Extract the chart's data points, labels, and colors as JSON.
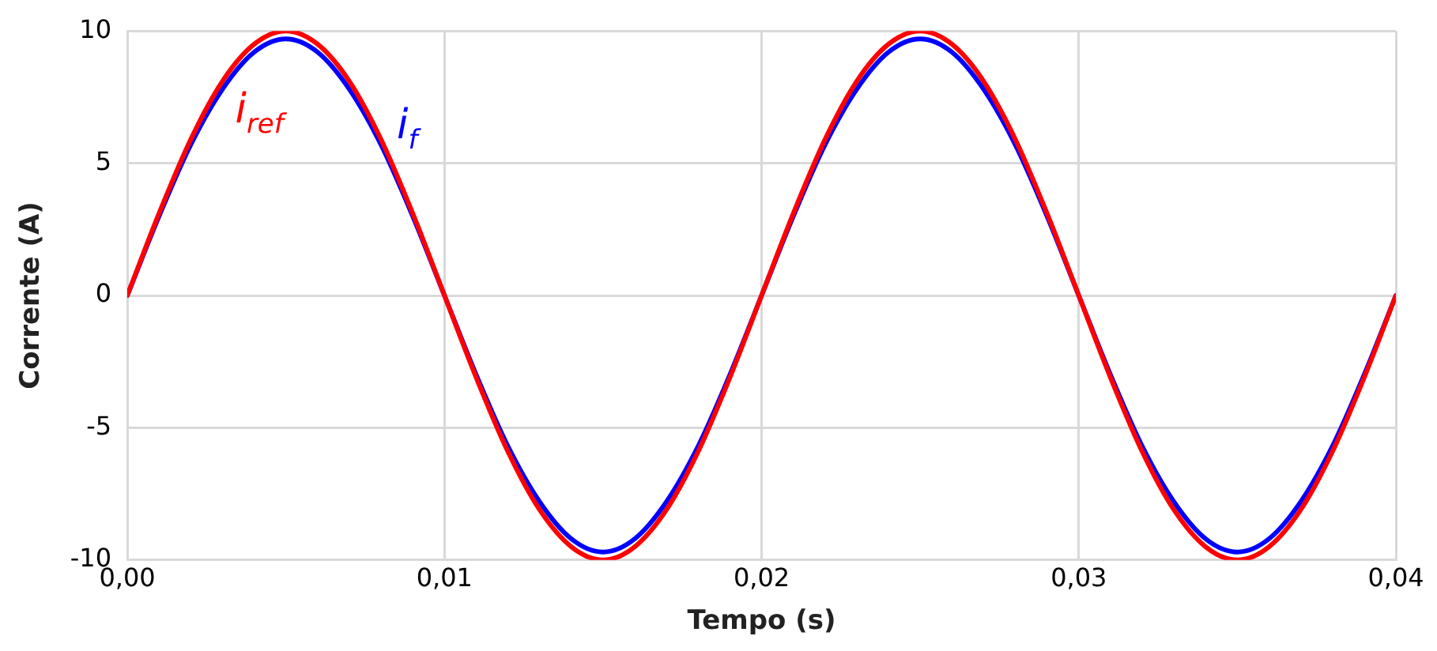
{
  "chart_data": {
    "type": "line",
    "xlabel": "Tempo (s)",
    "ylabel": "Corrente (A)",
    "x": [
      0,
      0.001,
      0.002,
      0.003,
      0.004,
      0.005,
      0.006,
      0.007,
      0.008,
      0.009,
      0.01,
      0.011,
      0.012,
      0.013,
      0.014,
      0.015,
      0.016,
      0.017,
      0.018,
      0.019,
      0.02,
      0.021,
      0.022,
      0.023,
      0.024,
      0.025,
      0.026,
      0.027,
      0.028,
      0.029,
      0.03,
      0.031,
      0.032,
      0.033,
      0.034,
      0.035,
      0.036,
      0.037,
      0.038,
      0.039,
      0.04
    ],
    "series": [
      {
        "name": "i$_{ref}$",
        "color": "#ff0000",
        "values": [
          0,
          3.1,
          5.9,
          8.1,
          9.5,
          10,
          9.5,
          8.1,
          5.9,
          3.1,
          0,
          -3.1,
          -5.9,
          -8.1,
          -9.5,
          -10,
          -9.5,
          -8.1,
          -5.9,
          -3.1,
          0,
          3.1,
          5.9,
          8.1,
          9.5,
          10,
          9.5,
          8.1,
          5.9,
          3.1,
          0,
          -3.1,
          -5.9,
          -8.1,
          -9.5,
          -10,
          -9.5,
          -8.1,
          -5.9,
          -3.1,
          0
        ]
      },
      {
        "name": "i$_{f}$",
        "color": "#0000ff",
        "values": [
          0,
          3.0,
          5.7,
          7.8,
          9.2,
          9.7,
          9.2,
          7.8,
          5.7,
          3.0,
          0,
          -3.0,
          -5.7,
          -7.8,
          -9.2,
          -9.7,
          -9.2,
          -7.8,
          -5.7,
          -3.0,
          0,
          3.0,
          5.7,
          7.8,
          9.2,
          9.7,
          9.2,
          7.8,
          5.7,
          3.0,
          0,
          -3.0,
          -5.7,
          -7.8,
          -9.2,
          -9.7,
          -9.2,
          -7.8,
          -5.7,
          -3.0,
          0
        ]
      }
    ],
    "xlim": [
      0,
      0.04
    ],
    "xticks": [
      {
        "value": 0,
        "label": "0,00"
      },
      {
        "value": 0.01,
        "label": "0,01"
      },
      {
        "value": 0.02,
        "label": "0,02"
      },
      {
        "value": 0.03,
        "label": "0,03"
      },
      {
        "value": 0.04,
        "label": "0,04"
      }
    ],
    "ylim": [
      -10,
      10
    ],
    "yticks": [
      -10,
      -5,
      0,
      5,
      10
    ],
    "grid": true,
    "legend": false,
    "marker": "none",
    "line_style": "solid"
  }
}
